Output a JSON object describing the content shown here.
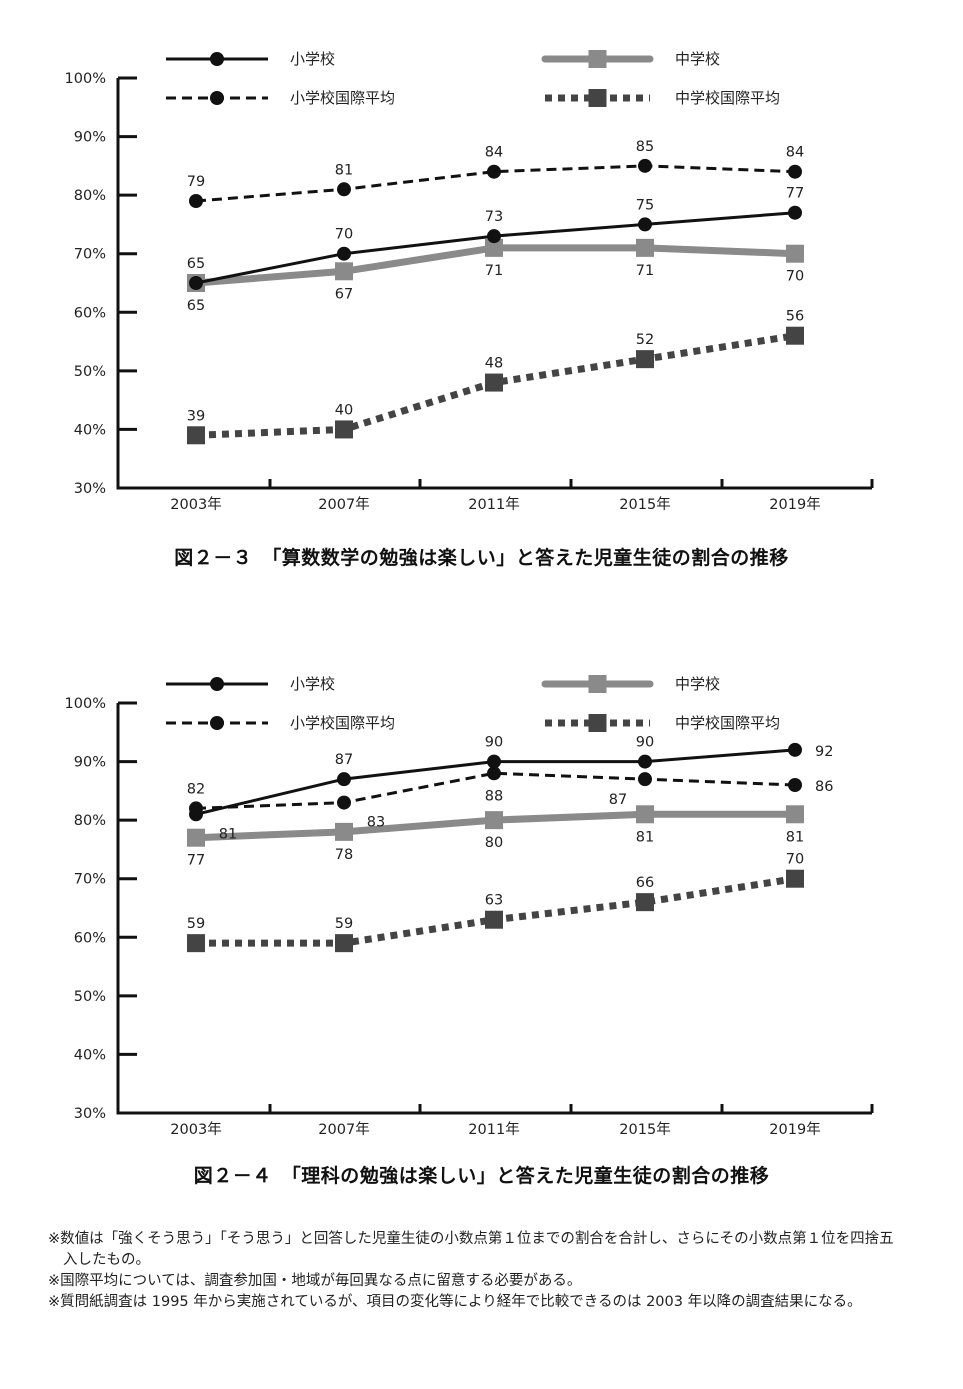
{
  "chart_data": [
    {
      "type": "line",
      "title": "図２－３　「算数数学の勉強は楽しい」と答えた児童生徒の割合の推移",
      "xlabel": "",
      "ylabel": "",
      "categories": [
        "2003年",
        "2007年",
        "2011年",
        "2015年",
        "2019年"
      ],
      "yticks": [
        "100%",
        "90%",
        "80%",
        "70%",
        "60%",
        "50%",
        "40%",
        "30%"
      ],
      "ylim": [
        30,
        100
      ],
      "grid": false,
      "legend_position": "top",
      "series": [
        {
          "name": "小学校",
          "values": [
            65,
            70,
            73,
            75,
            77
          ],
          "style": "solid-black-circle",
          "label_pos": [
            "above",
            "above",
            "above",
            "above",
            "above"
          ]
        },
        {
          "name": "中学校",
          "values": [
            65,
            67,
            71,
            71,
            70
          ],
          "style": "solid-gray-square",
          "label_pos": [
            "below",
            "below",
            "below",
            "below",
            "below"
          ]
        },
        {
          "name": "小学校国際平均",
          "values": [
            79,
            81,
            84,
            85,
            84
          ],
          "style": "dashed-black-circle",
          "label_pos": [
            "above",
            "above",
            "above",
            "above",
            "above"
          ]
        },
        {
          "name": "中学校国際平均",
          "values": [
            39,
            40,
            48,
            52,
            56
          ],
          "style": "dotted-darkgray-square",
          "label_pos": [
            "above",
            "above",
            "above",
            "above",
            "above"
          ]
        }
      ]
    },
    {
      "type": "line",
      "title": "図２－４　「理科の勉強は楽しい」と答えた児童生徒の割合の推移",
      "xlabel": "",
      "ylabel": "",
      "categories": [
        "2003年",
        "2007年",
        "2011年",
        "2015年",
        "2019年"
      ],
      "yticks": [
        "100%",
        "90%",
        "80%",
        "70%",
        "60%",
        "50%",
        "40%",
        "30%"
      ],
      "ylim": [
        30,
        100
      ],
      "grid": false,
      "legend_position": "top",
      "series": [
        {
          "name": "小学校",
          "values": [
            81,
            87,
            90,
            90,
            92
          ],
          "style": "solid-black-circle",
          "label_pos": [
            "below-right",
            "above",
            "above",
            "above",
            "right"
          ]
        },
        {
          "name": "中学校",
          "values": [
            77,
            78,
            80,
            81,
            81
          ],
          "style": "solid-gray-square",
          "label_pos": [
            "below",
            "below",
            "below",
            "below",
            "below"
          ]
        },
        {
          "name": "小学校国際平均",
          "values": [
            82,
            83,
            88,
            87,
            86
          ],
          "style": "dashed-black-circle",
          "label_pos": [
            "above",
            "below-right",
            "below",
            "below-left",
            "right"
          ]
        },
        {
          "name": "中学校国際平均",
          "values": [
            59,
            59,
            63,
            66,
            70
          ],
          "style": "dotted-darkgray-square",
          "label_pos": [
            "above",
            "above",
            "above",
            "above",
            "above"
          ]
        }
      ]
    }
  ],
  "colors": {
    "elementary": "#111111",
    "junior_high": "#8a8a8a",
    "elementary_intl": "#111111",
    "junior_high_intl": "#444444",
    "axis": "#111111"
  },
  "notes": [
    "※数値は「強くそう思う」「そう思う」と回答した児童生徒の小数点第１位までの割合を合計し、さらにその小数点第１位を四捨五入したもの。",
    "※国際平均については、調査参加国・地域が毎回異なる点に留意する必要がある。",
    "※質問紙調査は 1995 年から実施されているが、項目の変化等により経年で比較できるのは 2003 年以降の調査結果になる。"
  ]
}
